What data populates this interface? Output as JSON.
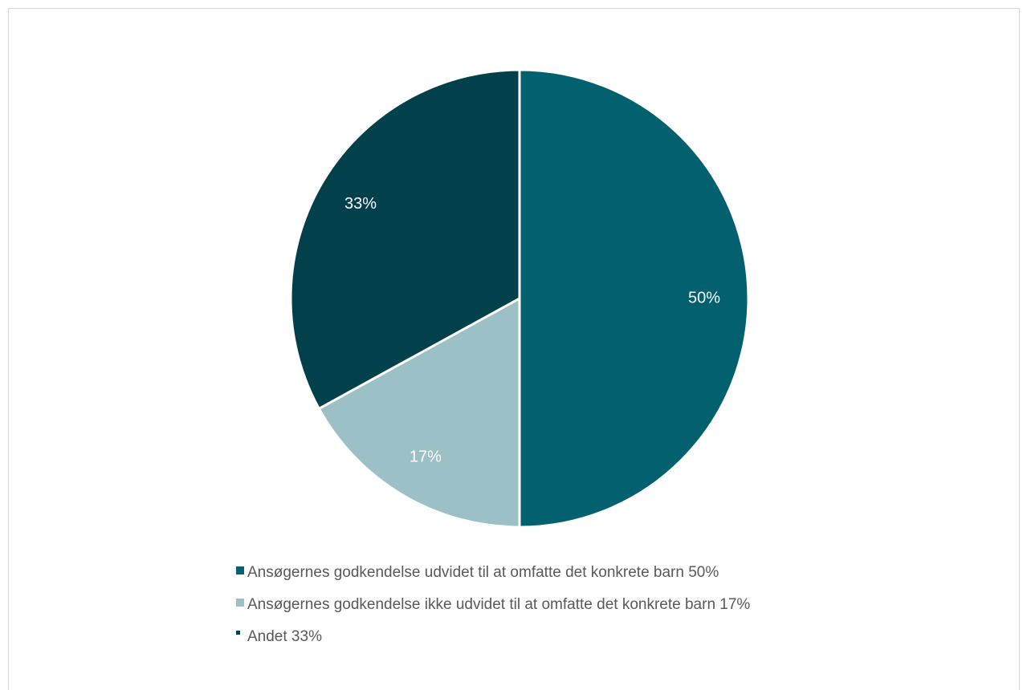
{
  "chart_data": {
    "type": "pie",
    "title": "",
    "slices": [
      {
        "label": "Ansøgernes godkendelse udvidet til at omfatte det konkrete barn",
        "value": 50,
        "data_label": "50%",
        "legend_text": "Ansøgernes godkendelse udvidet til at omfatte det konkrete barn 50%",
        "color": "#03606f"
      },
      {
        "label": "Ansøgernes godkendelse ikke udvidet til at omfatte det konkrete barn",
        "value": 17,
        "data_label": "17%",
        "legend_text": "Ansøgernes godkendelse ikke udvidet til at omfatte det konkrete barn 17%",
        "color": "#9bc0c6"
      },
      {
        "label": "Andet",
        "value": 33,
        "data_label": "33%",
        "legend_text": "Andet 33%",
        "color": "#02404c"
      }
    ],
    "start_angle": "12 o'clock",
    "direction": "clockwise",
    "legend_position": "bottom",
    "label_color": "#ffffff",
    "legend_text_color": "#595959"
  }
}
